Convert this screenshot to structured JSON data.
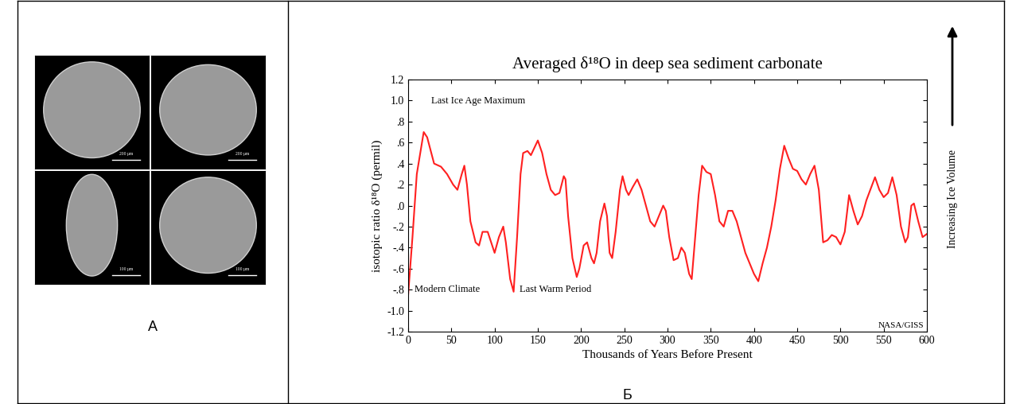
{
  "chart_data": {
    "type": "line",
    "title": "Averaged δ¹⁸O in deep sea sediment carbonate",
    "x_label": "Thousands of Years Before Present",
    "y_label": "isotopic ratio δ¹⁸O (permil)",
    "x": [
      0,
      5,
      10,
      18,
      22,
      30,
      38,
      45,
      52,
      57,
      62,
      65,
      68,
      72,
      78,
      82,
      86,
      92,
      96,
      100,
      105,
      110,
      113,
      118,
      122,
      126,
      130,
      133,
      138,
      142,
      146,
      150,
      155,
      160,
      165,
      170,
      175,
      180,
      182,
      185,
      190,
      195,
      198,
      203,
      207,
      212,
      215,
      218,
      222,
      227,
      230,
      233,
      236,
      240,
      245,
      248,
      252,
      255,
      260,
      265,
      270,
      275,
      280,
      285,
      290,
      295,
      298,
      302,
      307,
      312,
      316,
      320,
      325,
      328,
      332,
      336,
      340,
      345,
      350,
      355,
      360,
      365,
      370,
      375,
      380,
      385,
      390,
      395,
      400,
      405,
      410,
      415,
      420,
      425,
      430,
      435,
      440,
      445,
      450,
      455,
      460,
      465,
      470,
      475,
      480,
      485,
      490,
      495,
      500,
      505,
      510,
      515,
      520,
      525,
      530,
      540,
      545,
      550,
      555,
      560,
      565,
      570,
      575,
      578,
      582,
      585,
      590,
      595,
      600
    ],
    "values": [
      -0.85,
      -0.3,
      0.3,
      0.7,
      0.65,
      0.4,
      0.37,
      0.3,
      0.2,
      0.15,
      0.3,
      0.38,
      0.2,
      -0.15,
      -0.35,
      -0.38,
      -0.25,
      -0.25,
      -0.35,
      -0.45,
      -0.3,
      -0.2,
      -0.35,
      -0.7,
      -0.82,
      -0.3,
      0.3,
      0.5,
      0.52,
      0.48,
      0.55,
      0.62,
      0.5,
      0.3,
      0.15,
      0.1,
      0.12,
      0.28,
      0.25,
      -0.1,
      -0.5,
      -0.68,
      -0.6,
      -0.38,
      -0.35,
      -0.5,
      -0.55,
      -0.45,
      -0.15,
      0.02,
      -0.1,
      -0.45,
      -0.5,
      -0.25,
      0.15,
      0.28,
      0.15,
      0.1,
      0.18,
      0.25,
      0.15,
      0.0,
      -0.15,
      -0.2,
      -0.1,
      0.0,
      -0.05,
      -0.3,
      -0.52,
      -0.5,
      -0.4,
      -0.45,
      -0.65,
      -0.7,
      -0.3,
      0.1,
      0.38,
      0.32,
      0.3,
      0.1,
      -0.15,
      -0.2,
      -0.05,
      -0.05,
      -0.15,
      -0.3,
      -0.45,
      -0.55,
      -0.65,
      -0.72,
      -0.55,
      -0.4,
      -0.2,
      0.05,
      0.35,
      0.57,
      0.45,
      0.35,
      0.33,
      0.25,
      0.2,
      0.3,
      0.38,
      0.15,
      -0.35,
      -0.33,
      -0.28,
      -0.3,
      -0.37,
      -0.25,
      0.1,
      -0.05,
      -0.18,
      -0.1,
      0.05,
      0.27,
      0.15,
      0.08,
      0.12,
      0.27,
      0.1,
      -0.2,
      -0.35,
      -0.3,
      0.0,
      0.02,
      -0.15,
      -0.3,
      -0.27
    ],
    "color": "#ff2020",
    "xlim": [
      0,
      600
    ],
    "ylim": [
      -1.2,
      1.2
    ],
    "xticks": [
      0,
      50,
      100,
      150,
      200,
      250,
      300,
      350,
      400,
      450,
      500,
      550,
      600
    ],
    "yticks": [
      1.2,
      1.0,
      {
        "value": 0.8,
        "label": ".8"
      },
      {
        "value": 0.6,
        "label": ".6"
      },
      {
        "value": 0.4,
        "label": ".4"
      },
      {
        "value": 0.2,
        "label": ".2"
      },
      {
        "value": 0.0,
        "label": ".0"
      },
      {
        "value": -0.2,
        "label": "-.2"
      },
      {
        "value": -0.4,
        "label": "-.4"
      },
      {
        "value": -0.6,
        "label": "-.6"
      },
      {
        "value": -0.8,
        "label": "-.8"
      },
      -1.0,
      -1.2
    ],
    "annotations": {
      "peak": "Last Ice Age Maximum",
      "modern": "Modern Climate",
      "warm": "Last Warm Period",
      "source": "NASA/GISS"
    },
    "side_label": "Increasing Ice Volume"
  },
  "panels": {
    "A": {
      "label": "А",
      "scale_bars": [
        "200 µm",
        "200 µm",
        "100 µm",
        "100 µm"
      ]
    },
    "B": {
      "label": "Б"
    }
  }
}
